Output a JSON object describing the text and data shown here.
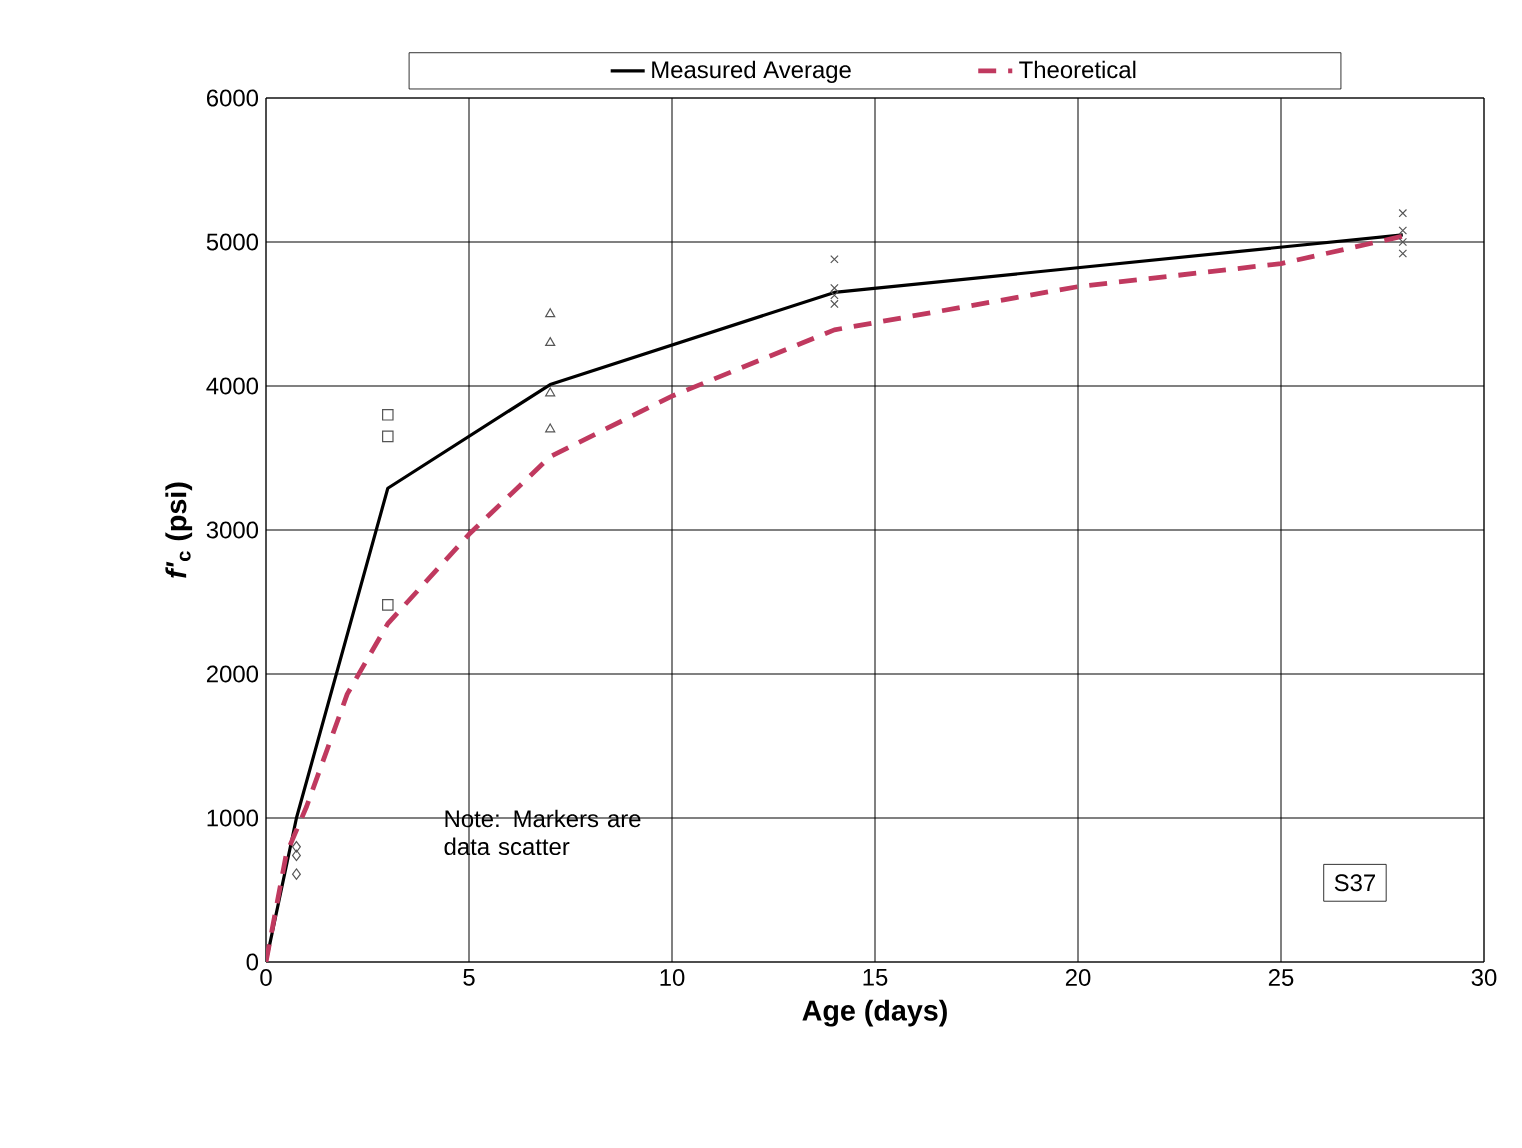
{
  "chart_data": {
    "type": "line",
    "xlabel": "Age (days)",
    "ylabel": "*f'*$_{c}$ (psi)",
    "xlim": [
      0,
      30
    ],
    "ylim": [
      0,
      6000
    ],
    "xticks": [
      0,
      5,
      10,
      15,
      20,
      25,
      30
    ],
    "yticks": [
      0,
      1000,
      2000,
      3000,
      4000,
      5000,
      6000
    ],
    "grid": true,
    "legend": "top",
    "series": [
      {
        "name": "Measured Average",
        "color": "#000000",
        "line_style": "solid",
        "x": [
          0,
          0.75,
          3,
          7,
          14,
          28
        ],
        "values": [
          0,
          1000,
          3290,
          4010,
          4650,
          5050
        ]
      },
      {
        "name": "Theoretical",
        "color": "#c0395f",
        "line_style": "dashed",
        "x": [
          0,
          0.5,
          1,
          2,
          3,
          5,
          7,
          10,
          14,
          20,
          25,
          28
        ],
        "values": [
          0,
          750,
          1080,
          1860,
          2350,
          2970,
          3510,
          3930,
          4390,
          4690,
          4850,
          5040
        ]
      },
      {
        "type": "scatter",
        "marker": "diamond",
        "color": "#555555",
        "x": [
          0.75,
          0.75,
          0.75
        ],
        "values": [
          800,
          740,
          610
        ]
      },
      {
        "type": "scatter",
        "marker": "square",
        "color": "#555555",
        "x": [
          3,
          3,
          3
        ],
        "values": [
          3800,
          3650,
          2480
        ]
      },
      {
        "type": "scatter",
        "marker": "triangle",
        "color": "#555555",
        "x": [
          7,
          7,
          7,
          7
        ],
        "values": [
          4500,
          4300,
          3950,
          3700
        ]
      },
      {
        "type": "scatter",
        "marker": "cross",
        "color": "#555555",
        "x": [
          14,
          14,
          14,
          14
        ],
        "values": [
          4880,
          4680,
          4630,
          4570
        ]
      },
      {
        "type": "scatter",
        "marker": "cross",
        "color": "#555555",
        "x": [
          28,
          28,
          28,
          28
        ],
        "values": [
          5200,
          5080,
          5000,
          4920
        ]
      }
    ],
    "annotations": [
      "Note: Markers are data scatter",
      "S37"
    ]
  }
}
